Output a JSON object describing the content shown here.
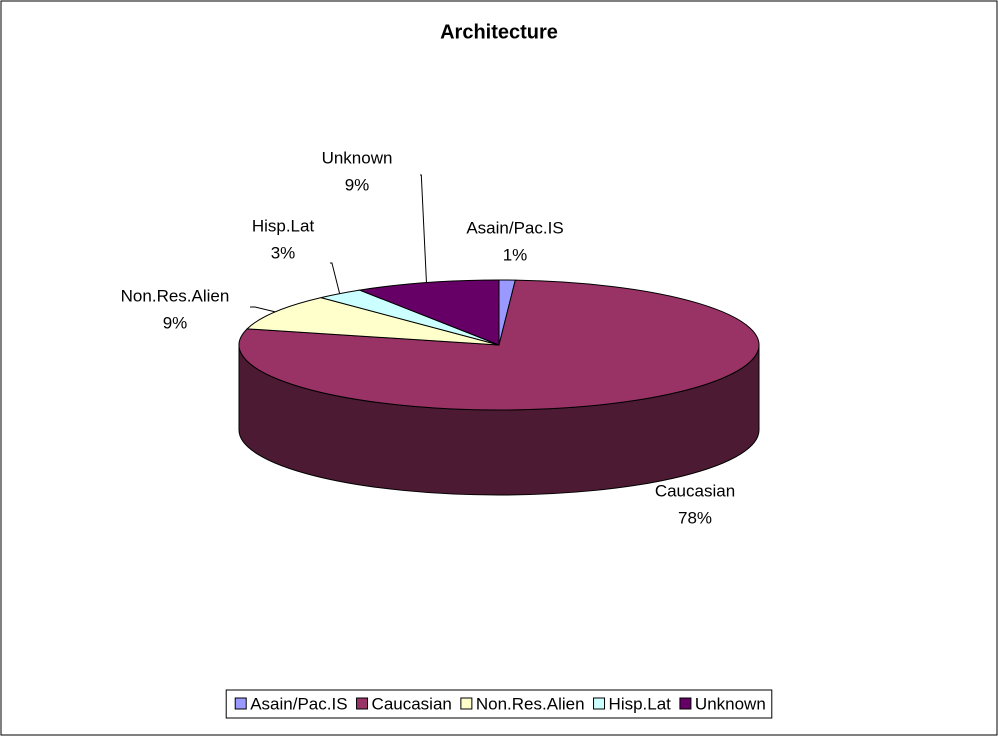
{
  "chart_data": {
    "type": "pie",
    "title": "Architecture",
    "categories": [
      "Asain/Pac.IS",
      "Caucasian",
      "Non.Res.Alien",
      "Hisp.Lat",
      "Unknown"
    ],
    "values": [
      1,
      78,
      9,
      3,
      9
    ],
    "value_labels": [
      "1%",
      "78%",
      "9%",
      "3%",
      "9%"
    ],
    "colors": [
      "#9999ff",
      "#993366",
      "#ffffcc",
      "#ccffff",
      "#660066"
    ],
    "legend": "bottom"
  }
}
